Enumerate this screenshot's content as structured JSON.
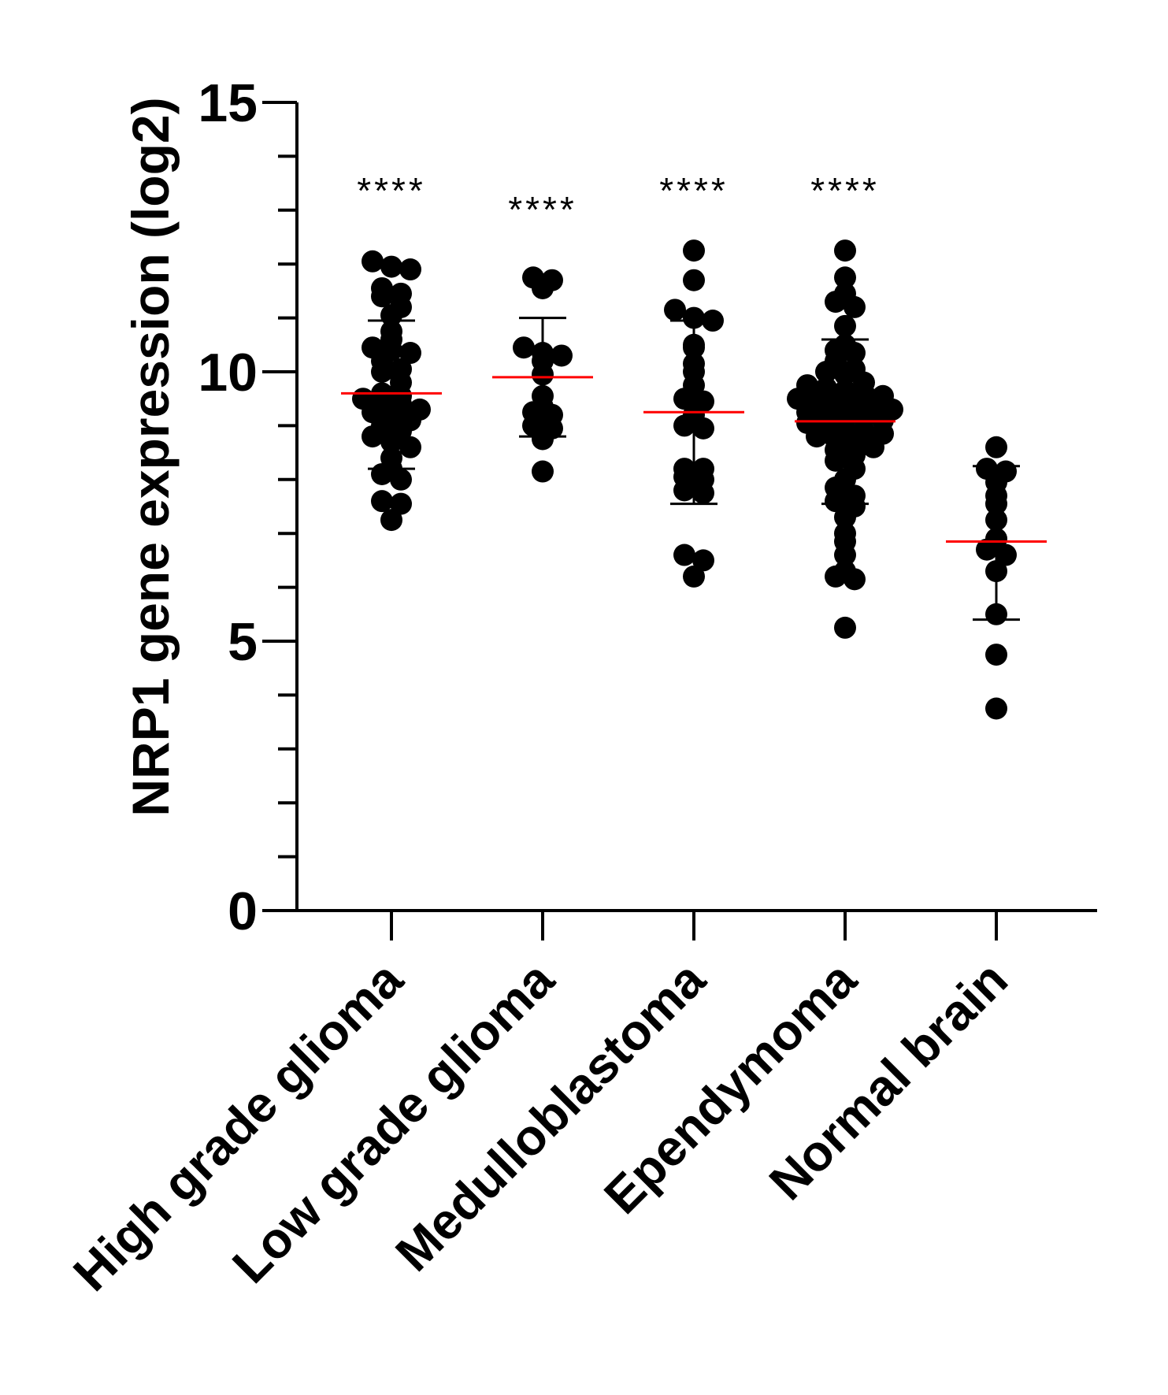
{
  "chart_data": {
    "type": "scatter",
    "ylabel": "NRP1 gene expression (log2)",
    "ylim": [
      0,
      15
    ],
    "yticks": [
      0,
      5,
      10,
      15
    ],
    "yminor_step": 1,
    "grid": false,
    "categories": [
      "High grade glioma",
      "Low grade glioma",
      "Medulloblastoma",
      "Ependymoma",
      "Normal brain"
    ],
    "colors": {
      "points": "#000000",
      "mean_line": "#ff0000",
      "axis": "#000000"
    },
    "groups": [
      {
        "name": "High grade glioma",
        "mean": 9.6,
        "sd_low": 8.2,
        "sd_high": 10.95,
        "annotation": "****",
        "values": [
          12.05,
          11.95,
          11.9,
          11.55,
          11.45,
          11.4,
          11.2,
          11.05,
          10.75,
          10.6,
          10.45,
          10.4,
          10.35,
          10.2,
          10.05,
          10.0,
          9.8,
          9.6,
          9.55,
          9.5,
          9.45,
          9.4,
          9.3,
          9.25,
          9.15,
          9.1,
          9.0,
          8.9,
          8.8,
          8.7,
          8.6,
          8.4,
          8.2,
          8.1,
          8.0,
          7.6,
          7.55,
          7.25
        ]
      },
      {
        "name": "Low grade glioma",
        "mean": 9.9,
        "sd_low": 8.8,
        "sd_high": 11.0,
        "annotation": "****",
        "values": [
          11.75,
          11.7,
          11.55,
          10.45,
          10.35,
          10.3,
          10.2,
          9.95,
          9.55,
          9.35,
          9.25,
          9.2,
          9.0,
          8.95,
          8.75,
          8.15
        ]
      },
      {
        "name": "Medulloblastoma",
        "mean": 9.25,
        "sd_low": 7.55,
        "sd_high": 10.95,
        "annotation": "****",
        "values": [
          12.25,
          11.7,
          11.15,
          11.0,
          10.95,
          10.5,
          10.45,
          10.15,
          10.0,
          9.75,
          9.5,
          9.45,
          9.2,
          9.0,
          8.95,
          8.2,
          8.2,
          8.05,
          8.0,
          7.8,
          7.75,
          6.6,
          6.5,
          6.2
        ]
      },
      {
        "name": "Ependymoma",
        "mean": 9.08,
        "sd_low": 7.55,
        "sd_high": 10.6,
        "annotation": "****",
        "values": [
          12.25,
          11.75,
          11.45,
          11.3,
          11.2,
          10.85,
          10.5,
          10.4,
          10.35,
          10.2,
          10.05,
          10.0,
          9.95,
          9.8,
          9.75,
          9.7,
          9.65,
          9.6,
          9.55,
          9.5,
          9.5,
          9.45,
          9.4,
          9.35,
          9.3,
          9.25,
          9.2,
          9.2,
          9.15,
          9.1,
          9.05,
          9.0,
          8.95,
          8.9,
          8.85,
          8.8,
          8.75,
          8.7,
          8.6,
          8.55,
          8.45,
          8.35,
          8.2,
          8.0,
          7.85,
          7.7,
          7.6,
          7.5,
          7.3,
          7.0,
          6.85,
          6.6,
          6.3,
          6.2,
          6.15,
          5.25
        ]
      },
      {
        "name": "Normal brain",
        "mean": 6.85,
        "sd_low": 5.4,
        "sd_high": 8.25,
        "annotation": "",
        "values": [
          8.6,
          8.2,
          8.15,
          7.95,
          7.7,
          7.55,
          7.25,
          6.9,
          6.7,
          6.6,
          6.3,
          5.5,
          4.75,
          3.75
        ]
      }
    ]
  }
}
